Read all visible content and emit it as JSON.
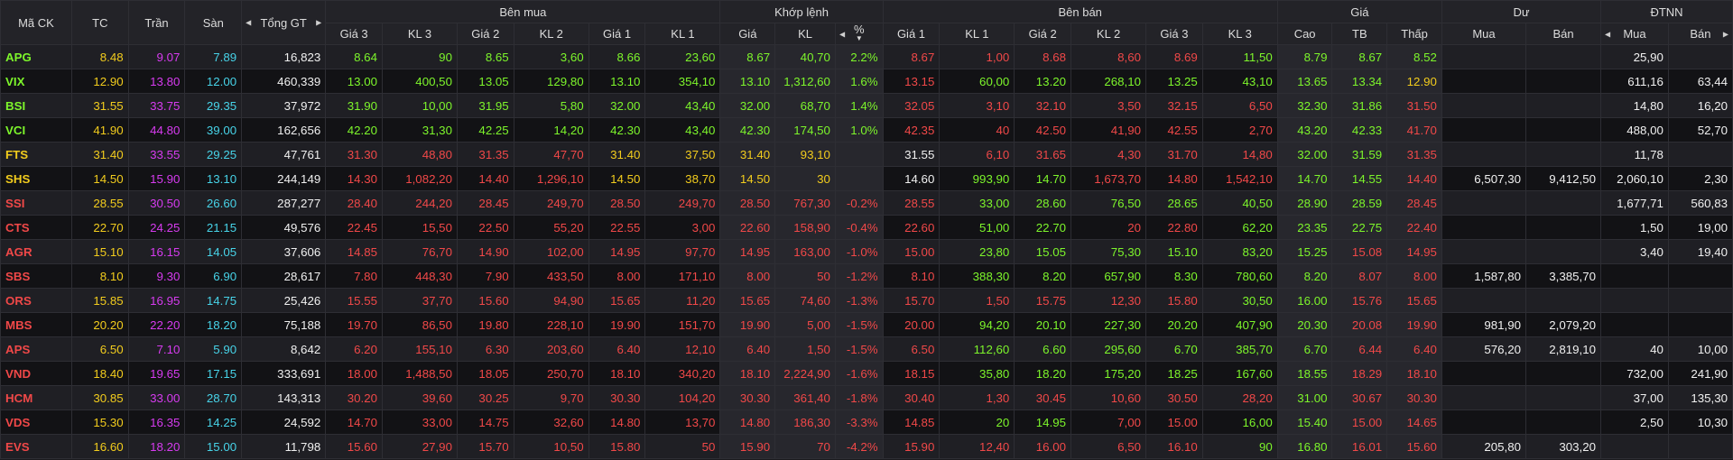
{
  "headers": {
    "symbol": "Mã CK",
    "ref": "TC",
    "ceiling": "Trần",
    "floor": "Sàn",
    "total": "Tổng GT",
    "bid_group": "Bên mua",
    "match_group": "Khớp lệnh",
    "ask_group": "Bên bán",
    "price_group": "Giá",
    "remain_group": "Dư",
    "foreign_group": "ĐTNN",
    "bid_cols": [
      "Giá 3",
      "KL 3",
      "Giá 2",
      "KL 2",
      "Giá 1",
      "KL 1"
    ],
    "match_cols": [
      "Giá",
      "KL",
      "%"
    ],
    "ask_cols": [
      "Giá 1",
      "KL 1",
      "Giá 2",
      "KL 2",
      "Giá 3",
      "KL 3"
    ],
    "price_cols": [
      "Cao",
      "TB",
      "Thấp"
    ],
    "remain_cols": [
      "Mua",
      "Bán"
    ],
    "foreign_cols": [
      "Mua",
      "Bán"
    ]
  },
  "icons": {
    "arrow_left": "triangle-left-icon",
    "arrow_right": "triangle-right-icon",
    "sort": "sort-down-icon"
  },
  "colors": {
    "up": "#7df52b",
    "down": "#f04848",
    "ref": "#f2cc1d",
    "ceiling": "#d73bf0",
    "floor": "#47d3e8"
  },
  "rows": [
    {
      "c": "up",
      "v": [
        "APG",
        "8.48",
        "9.07",
        "7.89",
        "16,823",
        "8.64",
        "90",
        "8.65",
        "3,60",
        "8.66",
        "23,60",
        "8.67",
        "40,70",
        "2.2%",
        "8.67",
        "1,00",
        "8.68",
        "8,60",
        "8.69",
        "11,50",
        "8.79",
        "8.67",
        "8.52",
        "",
        "",
        "25,90",
        ""
      ]
    },
    {
      "c": "up",
      "v": [
        "VIX",
        "12.90",
        "13.80",
        "12.00",
        "460,339",
        "13.00",
        "400,50",
        "13.05",
        "129,80",
        "13.10",
        "354,10",
        "13.10",
        "1,312,60",
        "1.6%",
        "13.15",
        "60,00",
        "13.20",
        "268,10",
        "13.25",
        "43,10",
        "13.65",
        "13.34",
        "12.90",
        "",
        "",
        "611,16",
        "63,44"
      ]
    },
    {
      "c": "up",
      "v": [
        "BSI",
        "31.55",
        "33.75",
        "29.35",
        "37,972",
        "31.90",
        "10,00",
        "31.95",
        "5,80",
        "32.00",
        "43,40",
        "32.00",
        "68,70",
        "1.4%",
        "32.05",
        "3,10",
        "32.10",
        "3,50",
        "32.15",
        "6,50",
        "32.30",
        "31.86",
        "31.50",
        "",
        "",
        "14,80",
        "16,20"
      ]
    },
    {
      "c": "up",
      "v": [
        "VCI",
        "41.90",
        "44.80",
        "39.00",
        "162,656",
        "42.20",
        "31,30",
        "42.25",
        "14,20",
        "42.30",
        "43,40",
        "42.30",
        "174,50",
        "1.0%",
        "42.35",
        "40",
        "42.50",
        "41,90",
        "42.55",
        "2,70",
        "43.20",
        "42.33",
        "41.70",
        "",
        "",
        "488,00",
        "52,70"
      ]
    },
    {
      "c": "ref",
      "v": [
        "FTS",
        "31.40",
        "33.55",
        "29.25",
        "47,761",
        "31.30",
        "48,80",
        "31.35",
        "47,70",
        "31.40",
        "37,50",
        "31.40",
        "93,10",
        "",
        "31.55",
        "6,10",
        "31.65",
        "4,30",
        "31.70",
        "14,80",
        "32.00",
        "31.59",
        "31.35",
        "",
        "",
        "11,78",
        ""
      ]
    },
    {
      "c": "ref",
      "v": [
        "SHS",
        "14.50",
        "15.90",
        "13.10",
        "244,149",
        "14.30",
        "1,082,20",
        "14.40",
        "1,296,10",
        "14.50",
        "38,70",
        "14.50",
        "30",
        "",
        "14.60",
        "993,90",
        "14.70",
        "1,673,70",
        "14.80",
        "1,542,10",
        "14.70",
        "14.55",
        "14.40",
        "6,507,30",
        "9,412,50",
        "2,060,10",
        "2,30"
      ]
    },
    {
      "c": "down",
      "v": [
        "SSI",
        "28.55",
        "30.50",
        "26.60",
        "287,277",
        "28.40",
        "244,20",
        "28.45",
        "249,70",
        "28.50",
        "249,70",
        "28.50",
        "767,30",
        "-0.2%",
        "28.55",
        "33,00",
        "28.60",
        "76,50",
        "28.65",
        "40,50",
        "28.90",
        "28.59",
        "28.45",
        "",
        "",
        "1,677,71",
        "560,83"
      ]
    },
    {
      "c": "down",
      "v": [
        "CTS",
        "22.70",
        "24.25",
        "21.15",
        "49,576",
        "22.45",
        "15,50",
        "22.50",
        "55,20",
        "22.55",
        "3,00",
        "22.60",
        "158,90",
        "-0.4%",
        "22.60",
        "51,00",
        "22.70",
        "20",
        "22.80",
        "62,20",
        "23.35",
        "22.75",
        "22.40",
        "",
        "",
        "1,50",
        "19,00"
      ]
    },
    {
      "c": "down",
      "v": [
        "AGR",
        "15.10",
        "16.15",
        "14.05",
        "37,606",
        "14.85",
        "76,70",
        "14.90",
        "102,00",
        "14.95",
        "97,70",
        "14.95",
        "163,00",
        "-1.0%",
        "15.00",
        "23,80",
        "15.05",
        "75,30",
        "15.10",
        "83,20",
        "15.25",
        "15.08",
        "14.95",
        "",
        "",
        "3,40",
        "19,40"
      ]
    },
    {
      "c": "down",
      "v": [
        "SBS",
        "8.10",
        "9.30",
        "6.90",
        "28,617",
        "7.80",
        "448,30",
        "7.90",
        "433,50",
        "8.00",
        "171,10",
        "8.00",
        "50",
        "-1.2%",
        "8.10",
        "388,30",
        "8.20",
        "657,90",
        "8.30",
        "780,60",
        "8.20",
        "8.07",
        "8.00",
        "1,587,80",
        "3,385,70",
        "",
        ""
      ]
    },
    {
      "c": "down",
      "v": [
        "ORS",
        "15.85",
        "16.95",
        "14.75",
        "25,426",
        "15.55",
        "37,70",
        "15.60",
        "94,90",
        "15.65",
        "11,20",
        "15.65",
        "74,60",
        "-1.3%",
        "15.70",
        "1,50",
        "15.75",
        "12,30",
        "15.80",
        "30,50",
        "16.00",
        "15.76",
        "15.65",
        "",
        "",
        "",
        ""
      ]
    },
    {
      "c": "down",
      "v": [
        "MBS",
        "20.20",
        "22.20",
        "18.20",
        "75,188",
        "19.70",
        "86,50",
        "19.80",
        "228,10",
        "19.90",
        "151,70",
        "19.90",
        "5,00",
        "-1.5%",
        "20.00",
        "94,20",
        "20.10",
        "227,30",
        "20.20",
        "407,90",
        "20.30",
        "20.08",
        "19.90",
        "981,90",
        "2,079,20",
        "",
        ""
      ]
    },
    {
      "c": "down",
      "v": [
        "APS",
        "6.50",
        "7.10",
        "5.90",
        "8,642",
        "6.20",
        "155,10",
        "6.30",
        "203,60",
        "6.40",
        "12,10",
        "6.40",
        "1,50",
        "-1.5%",
        "6.50",
        "112,60",
        "6.60",
        "295,60",
        "6.70",
        "385,70",
        "6.70",
        "6.44",
        "6.40",
        "576,20",
        "2,819,10",
        "40",
        "10,00"
      ]
    },
    {
      "c": "down",
      "v": [
        "VND",
        "18.40",
        "19.65",
        "17.15",
        "333,691",
        "18.00",
        "1,488,50",
        "18.05",
        "250,70",
        "18.10",
        "340,20",
        "18.10",
        "2,224,90",
        "-1.6%",
        "18.15",
        "35,80",
        "18.20",
        "175,20",
        "18.25",
        "167,60",
        "18.55",
        "18.29",
        "18.10",
        "",
        "",
        "732,00",
        "241,90"
      ]
    },
    {
      "c": "down",
      "v": [
        "HCM",
        "30.85",
        "33.00",
        "28.70",
        "143,313",
        "30.20",
        "39,60",
        "30.25",
        "9,70",
        "30.30",
        "104,20",
        "30.30",
        "361,40",
        "-1.8%",
        "30.40",
        "1,30",
        "30.45",
        "10,60",
        "30.50",
        "28,20",
        "31.00",
        "30.67",
        "30.30",
        "",
        "",
        "37,00",
        "135,30"
      ]
    },
    {
      "c": "down",
      "v": [
        "VDS",
        "15.30",
        "16.35",
        "14.25",
        "24,592",
        "14.70",
        "33,00",
        "14.75",
        "32,60",
        "14.80",
        "13,70",
        "14.80",
        "186,30",
        "-3.3%",
        "14.85",
        "20",
        "14.95",
        "7,00",
        "15.00",
        "16,00",
        "15.40",
        "15.00",
        "14.65",
        "",
        "",
        "2,50",
        "10,30"
      ]
    },
    {
      "c": "down",
      "v": [
        "EVS",
        "16.60",
        "18.20",
        "15.00",
        "11,798",
        "15.60",
        "27,90",
        "15.70",
        "10,50",
        "15.80",
        "50",
        "15.90",
        "70",
        "-4.2%",
        "15.90",
        "12,40",
        "16.00",
        "6,50",
        "16.10",
        "90",
        "16.80",
        "16.01",
        "15.60",
        "205,80",
        "303,20",
        "",
        ""
      ]
    }
  ]
}
